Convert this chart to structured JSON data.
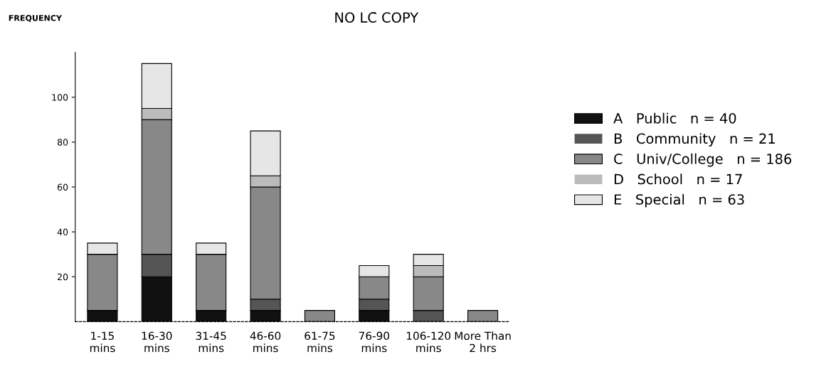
{
  "chart_data": {
    "type": "bar",
    "stacked": true,
    "title": "NO LC̄ COPY",
    "ylabel": "FREQUENCY",
    "categories": [
      "1-15\nmins",
      "16-30\nmins",
      "31-45\nmins",
      "46-60\nmins",
      "61-75\nmins",
      "76-90\nmins",
      "106-120\nmins",
      "More Than\n2 hrs"
    ],
    "series": [
      {
        "name": "A   Public   n = 40",
        "color": "#111111",
        "values": [
          5,
          20,
          5,
          5,
          0,
          5,
          0,
          0
        ]
      },
      {
        "name": "B   Community   n = 21",
        "color": "#555555",
        "values": [
          0,
          10,
          0,
          5,
          0,
          5,
          5,
          0
        ]
      },
      {
        "name": "C   Univ/College   n = 186",
        "color": "#888888",
        "values": [
          25,
          60,
          25,
          50,
          5,
          10,
          15,
          5
        ]
      },
      {
        "name": "D   School   n = 17",
        "color": "#bbbbbb",
        "values": [
          0,
          5,
          0,
          5,
          0,
          0,
          5,
          0
        ]
      },
      {
        "name": "E   Special   n = 63",
        "color": "#e6e6e6",
        "values": [
          5,
          20,
          5,
          20,
          0,
          5,
          5,
          0
        ]
      }
    ],
    "ylim": [
      0,
      120
    ],
    "yticks": [
      20,
      40,
      60,
      80,
      100
    ],
    "legend": "right"
  }
}
